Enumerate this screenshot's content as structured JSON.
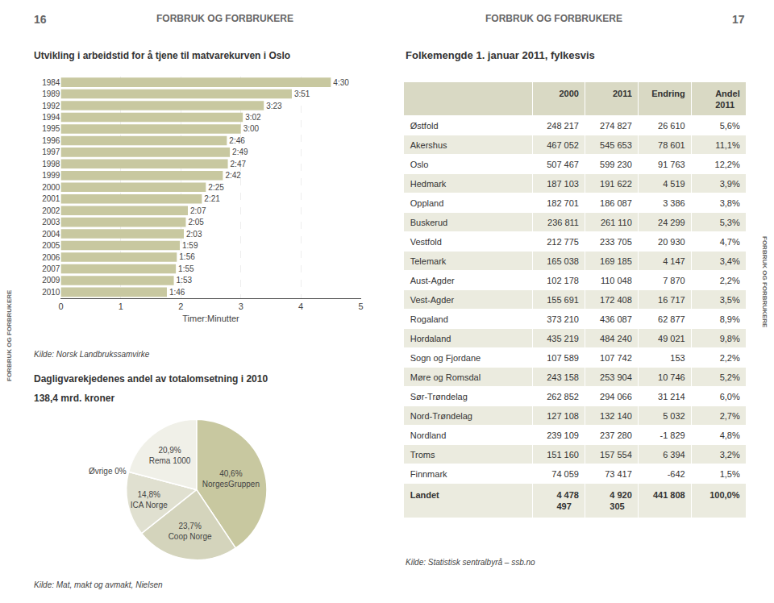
{
  "annotations": [
    "16",
    "FORBRUK OG FORBRUKERE",
    "FORBRUK OG FORBRUKERE",
    "17",
    "FORBRUK OG FORBRUKERE",
    "FORBRUK OG FORBRUKERE"
  ],
  "chart_data": [
    {
      "type": "bar",
      "title": "Utvikling i arbeidstid for å tjene til matvarekurven i Oslo",
      "orientation": "horizontal",
      "categories": [
        "2010",
        "2009",
        "2007",
        "2006",
        "2005",
        "2004",
        "2003",
        "2002",
        "2001",
        "2000",
        "1999",
        "1998",
        "1997",
        "1996",
        "1995",
        "1994",
        "1992",
        "1989",
        "1984"
      ],
      "values": [
        1.767,
        1.883,
        1.917,
        1.933,
        1.983,
        2.05,
        2.083,
        2.117,
        2.35,
        2.417,
        2.7,
        2.783,
        2.817,
        2.767,
        3.0,
        3.033,
        3.383,
        3.85,
        4.5
      ],
      "value_labels": [
        "1:46",
        "1:53",
        "1:55",
        "1:56",
        "1:59",
        "2:03",
        "2:05",
        "2:07",
        "2:21",
        "2:25",
        "2:42",
        "2:47",
        "2:49",
        "2:46",
        "3:00",
        "3:02",
        "3:23",
        "3:51",
        "4:30"
      ],
      "data_labels": true,
      "color": "#c8c8a0",
      "xlabel": "Timer:Minutter",
      "xlim": [
        0,
        5
      ],
      "xticks": [
        0,
        1,
        2,
        3,
        4,
        5
      ],
      "grid": true,
      "annotations": [
        "Kilde: Norsk Landbrukssamvirke"
      ]
    },
    {
      "type": "pie",
      "title": "Dagligvarekjedenes andel av totalomsetning i 2010",
      "subtitle": "138,4 mrd. kroner",
      "categories": [
        "NorgesGruppen",
        "Coop Norge",
        "ICA Norge",
        null,
        "Rema 1000"
      ],
      "values": [
        40.6,
        23.7,
        14.8,
        0.001,
        20.9
      ],
      "value_labels": [
        "40,6%",
        "23,7%",
        "14,8%",
        "Øvrige 0%",
        "20,9%"
      ],
      "data_labels": true,
      "colors": [
        "#c8c8a0",
        "#d4d4bc",
        "#e0e0d0",
        "#e8e8e0",
        "#f0f0e8"
      ],
      "annotations": [
        "Kilde: Mat, makt og avmakt, Nielsen"
      ]
    },
    {
      "type": "table",
      "title": "Folkemengde 1. januar 2011, fylkesvis",
      "columns": [
        "",
        "2000",
        "2011",
        "Endring",
        "Andel 2011"
      ],
      "rows": [
        [
          "Østfold",
          "248 217",
          "274 827",
          "26 610",
          "5,6%"
        ],
        [
          "Akershus",
          "467 052",
          "545 653",
          "78 601",
          "11,1%"
        ],
        [
          "Oslo",
          "507 467",
          "599 230",
          "91 763",
          "12,2%"
        ],
        [
          "Hedmark",
          "187 103",
          "191 622",
          "4 519",
          "3,9%"
        ],
        [
          "Oppland",
          "182 701",
          "186 087",
          "3 386",
          "3,8%"
        ],
        [
          "Buskerud",
          "236 811",
          "261 110",
          "24 299",
          "5,3%"
        ],
        [
          "Vestfold",
          "212 775",
          "233 705",
          "20 930",
          "4,7%"
        ],
        [
          "Telemark",
          "165 038",
          "169 185",
          "4 147",
          "3,4%"
        ],
        [
          "Aust-Agder",
          "102 178",
          "110 048",
          "7 870",
          "2,2%"
        ],
        [
          "Vest-Agder",
          "155 691",
          "172 408",
          "16 717",
          "3,5%"
        ],
        [
          "Rogaland",
          "373 210",
          "436 087",
          "62 877",
          "8,9%"
        ],
        [
          "Hordaland",
          "435 219",
          "484 240",
          "49 021",
          "9,8%"
        ],
        [
          "Sogn og Fjordane",
          "107 589",
          "107 742",
          "153",
          "2,2%"
        ],
        [
          "Møre og Romsdal",
          "243 158",
          "253 904",
          "10 746",
          "5,2%"
        ],
        [
          "Sør-Trøndelag",
          "262 852",
          "294 066",
          "31 214",
          "6,0%"
        ],
        [
          "Nord-Trøndelag",
          "127 108",
          "132 140",
          "5 032",
          "2,7%"
        ],
        [
          "Nordland",
          "239 109",
          "237 280",
          "-1 829",
          "4,8%"
        ],
        [
          "Troms",
          "151 160",
          "157 554",
          "6 394",
          "3,2%"
        ],
        [
          "Finnmark",
          "74 059",
          "73 417",
          "-642",
          "1,5%"
        ],
        [
          "Landet",
          "4 478 497",
          "4 920 305",
          "441 808",
          "100,0%"
        ]
      ],
      "annotations": [
        "Kilde: Statistisk sentralbyrå – ssb.no"
      ]
    }
  ]
}
